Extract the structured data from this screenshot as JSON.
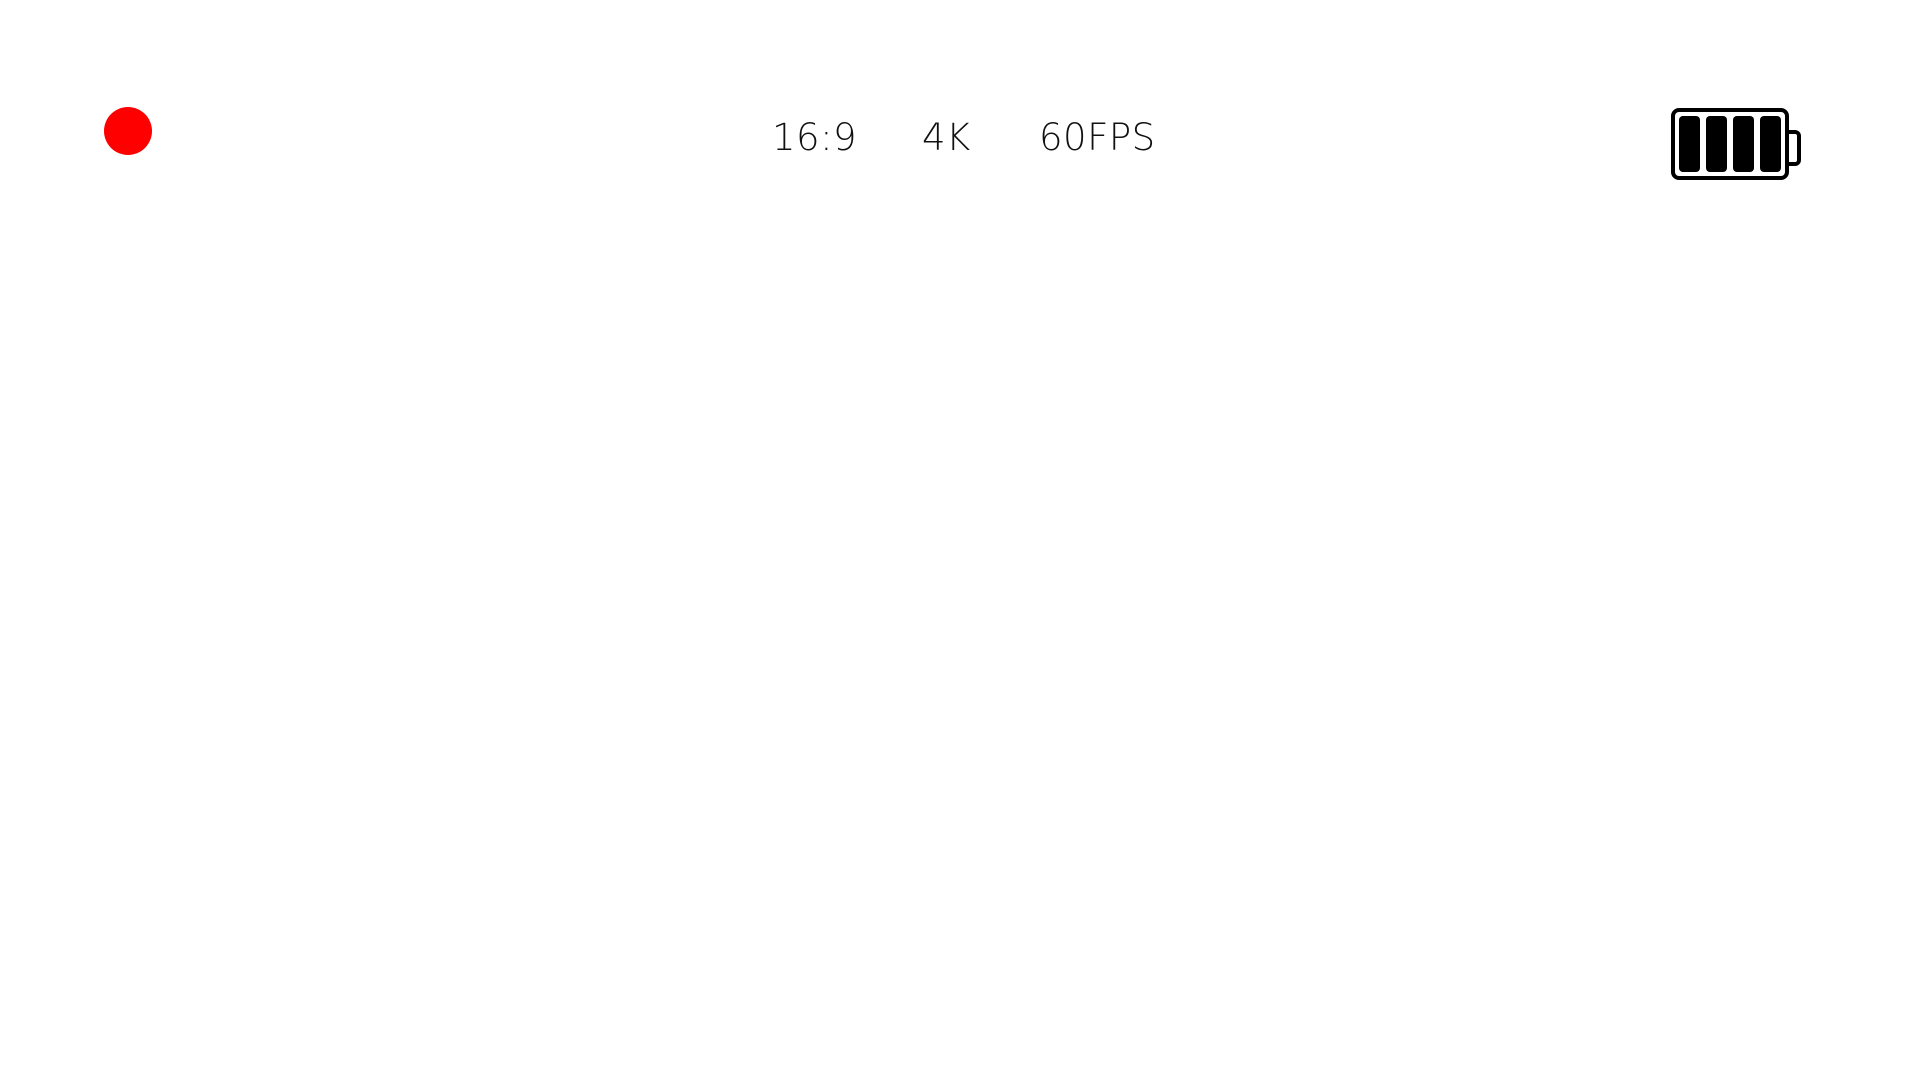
{
  "recording": {
    "indicator_icon": "record-dot-icon",
    "color": "#ff0000"
  },
  "settings": {
    "aspect_ratio": "16:9",
    "resolution": "4K",
    "frame_rate": "60FPS"
  },
  "battery": {
    "icon": "battery-icon",
    "level_fraction": 1.0,
    "cells_total": 4,
    "cells_filled": 4,
    "color": "#000000"
  }
}
